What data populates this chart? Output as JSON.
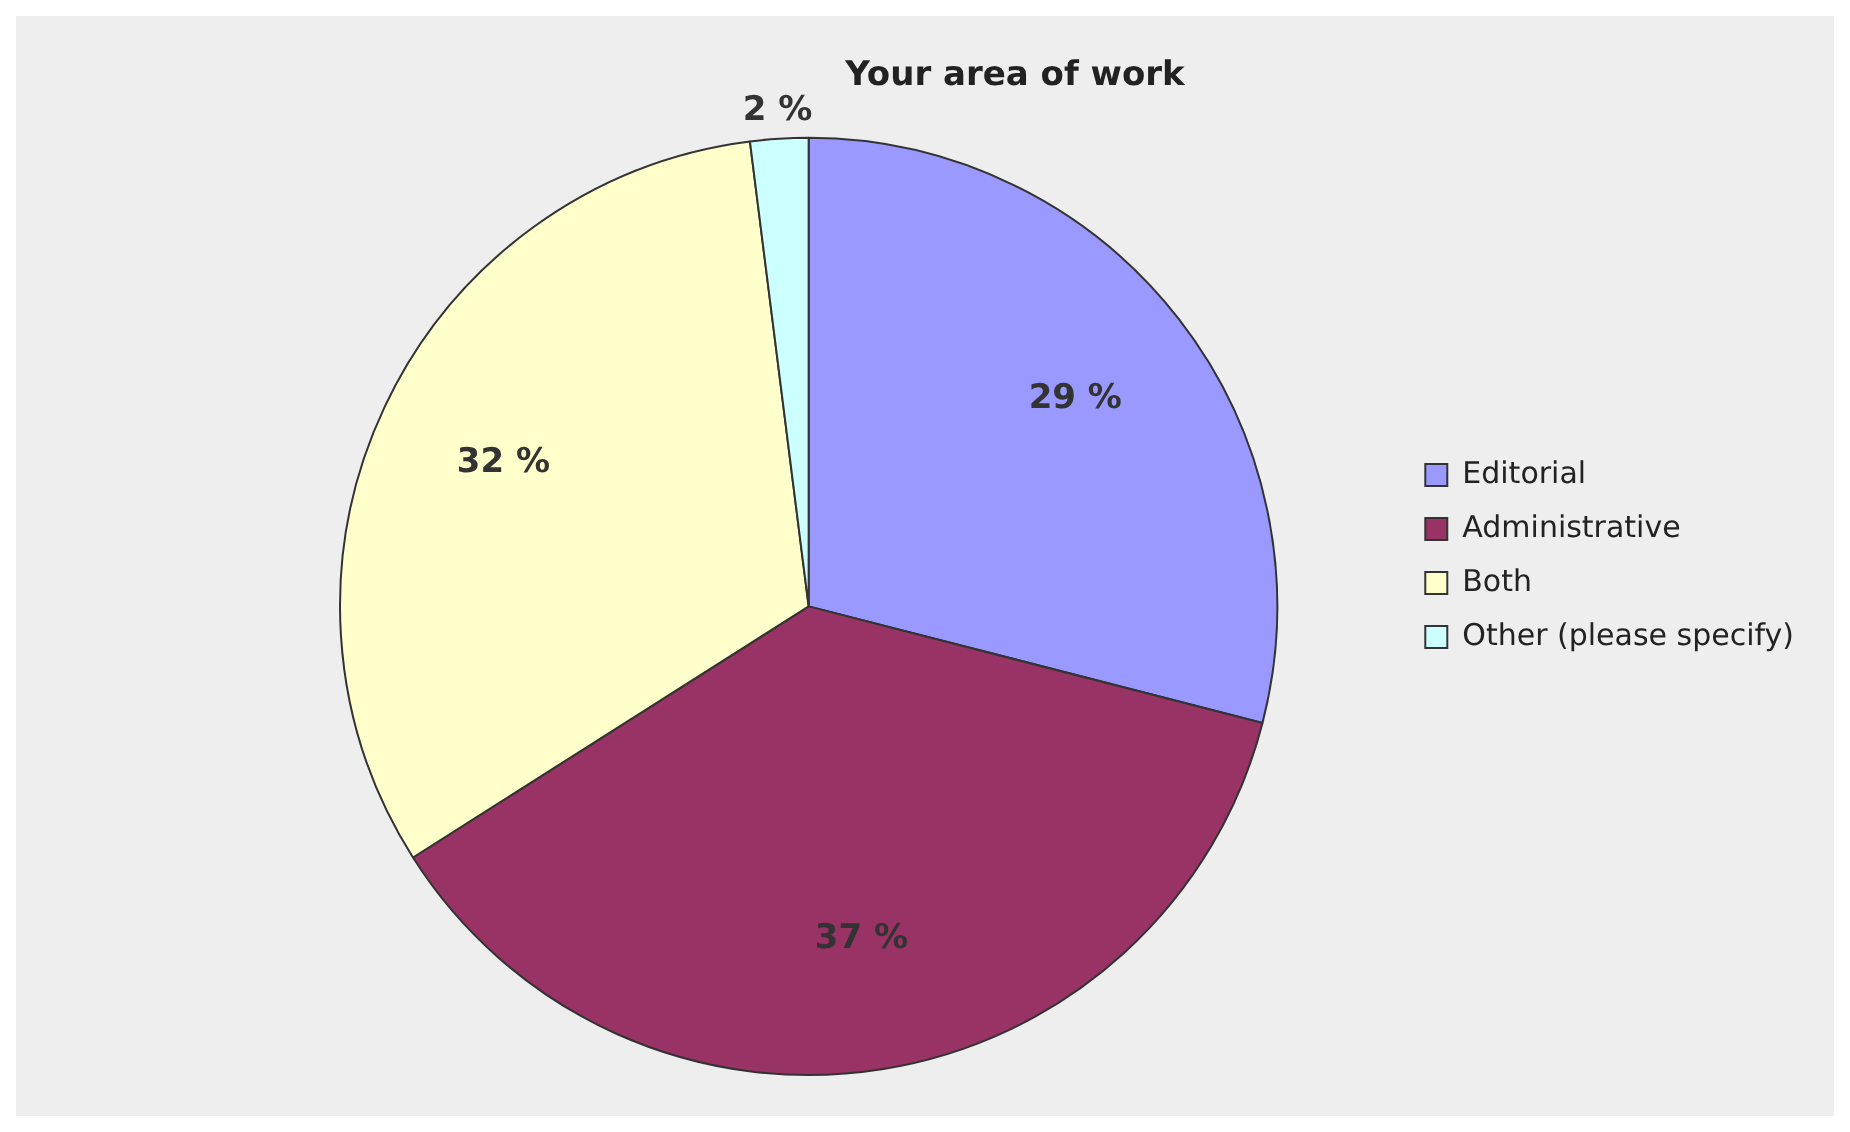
{
  "chart_data": {
    "type": "pie",
    "title": "Your area of work",
    "categories": [
      "Editorial",
      "Administrative",
      "Both",
      "Other (please specify)"
    ],
    "values": [
      29,
      37,
      32,
      2
    ],
    "colors": [
      "#9999ff",
      "#993366",
      "#ffffcc",
      "#ccffff"
    ],
    "value_labels": [
      "29 %",
      "37 %",
      "32 %",
      "2 %"
    ],
    "legend": "right"
  }
}
